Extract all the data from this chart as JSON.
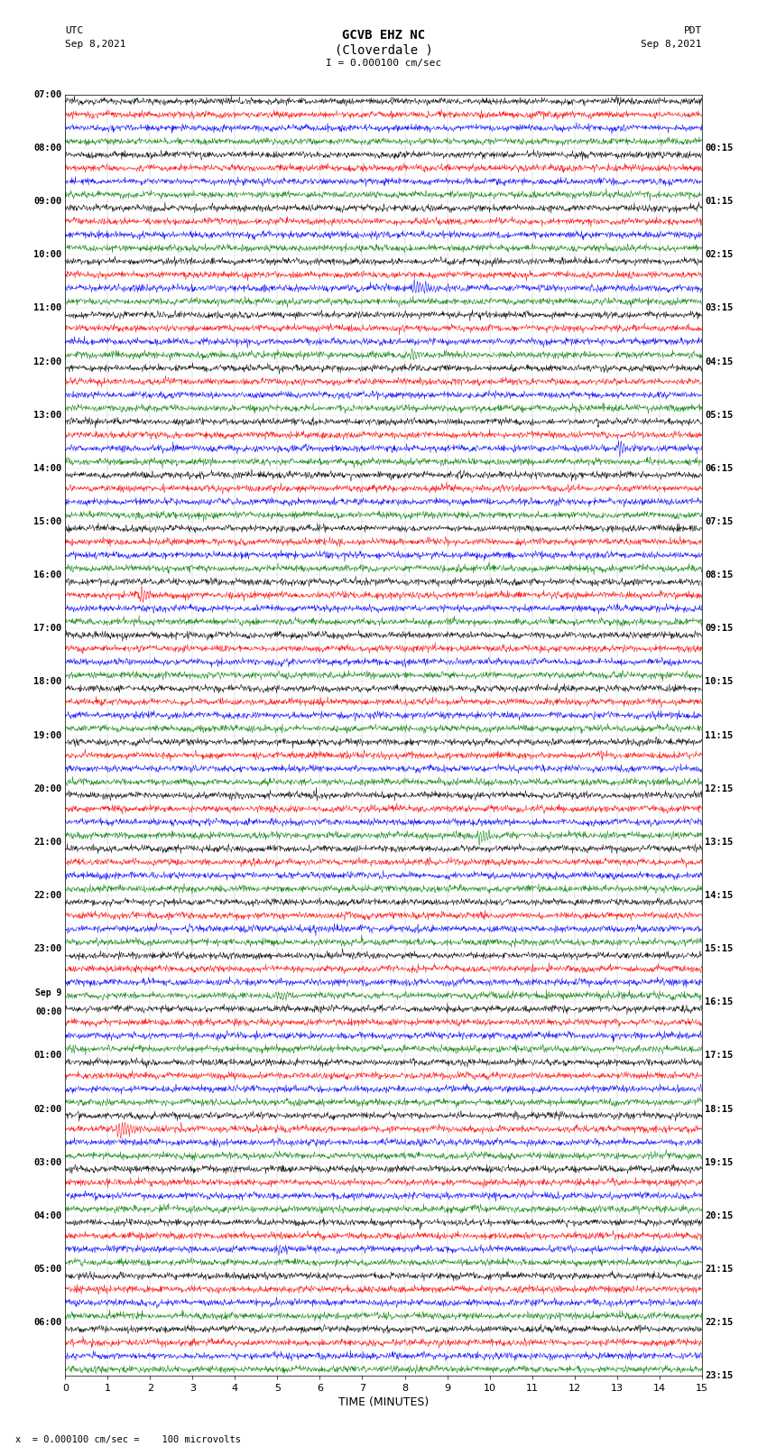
{
  "title_line1": "GCVB EHZ NC",
  "title_line2": "(Cloverdale )",
  "scale_label": "I = 0.000100 cm/sec",
  "utc_label": "UTC",
  "utc_date": "Sep 8,2021",
  "pdt_label": "PDT",
  "pdt_date": "Sep 8,2021",
  "xlabel": "TIME (MINUTES)",
  "footer": "x  = 0.000100 cm/sec =    100 microvolts",
  "left_times": [
    "07:00",
    "08:00",
    "09:00",
    "10:00",
    "11:00",
    "12:00",
    "13:00",
    "14:00",
    "15:00",
    "16:00",
    "17:00",
    "18:00",
    "19:00",
    "20:00",
    "21:00",
    "22:00",
    "23:00",
    "Sep 9\n00:00",
    "01:00",
    "02:00",
    "03:00",
    "04:00",
    "05:00",
    "06:00"
  ],
  "right_times": [
    "00:15",
    "01:15",
    "02:15",
    "03:15",
    "04:15",
    "05:15",
    "06:15",
    "07:15",
    "08:15",
    "09:15",
    "10:15",
    "11:15",
    "12:15",
    "13:15",
    "14:15",
    "15:15",
    "16:15",
    "17:15",
    "18:15",
    "19:15",
    "20:15",
    "21:15",
    "22:15",
    "23:15"
  ],
  "trace_colors": [
    "black",
    "red",
    "blue",
    "green"
  ],
  "n_rows": 24,
  "traces_per_row": 4,
  "background_color": "white",
  "plot_bg": "white",
  "xmin": 0,
  "xmax": 15,
  "figsize": [
    8.5,
    16.13
  ],
  "dpi": 100
}
